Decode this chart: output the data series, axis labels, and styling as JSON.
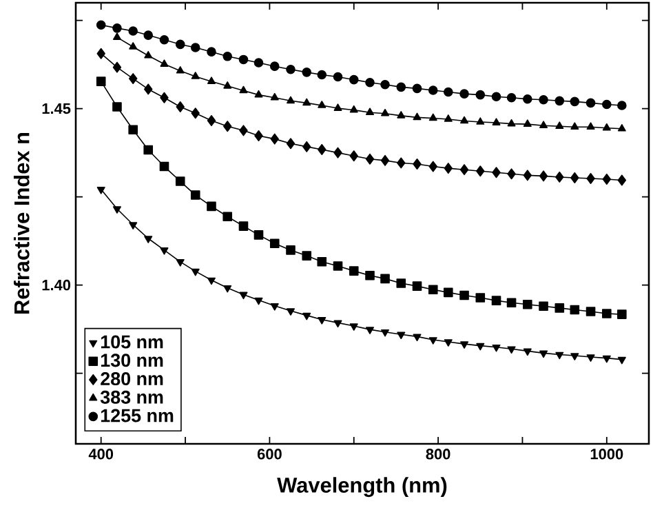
{
  "chart_data": {
    "type": "line",
    "xlabel": "Wavelength (nm)",
    "ylabel": "Refractive Index n",
    "x": [
      400,
      419,
      438,
      456,
      475,
      494,
      512,
      531,
      550,
      569,
      587,
      606,
      625,
      644,
      662,
      681,
      700,
      719,
      737,
      756,
      775,
      794,
      812,
      831,
      850,
      869,
      887,
      906,
      925,
      944,
      962,
      981,
      1000,
      1018
    ],
    "series": [
      {
        "name": "105 nm",
        "color": "#000000",
        "marker": "triangle-down",
        "values": [
          1.4271,
          1.4216,
          1.4171,
          1.4132,
          1.4099,
          1.4066,
          1.4039,
          1.4014,
          1.3992,
          1.3973,
          1.3957,
          1.3941,
          1.3927,
          1.3914,
          1.3902,
          1.3893,
          1.3884,
          1.3874,
          1.3867,
          1.386,
          1.3854,
          1.3845,
          1.3839,
          1.3833,
          1.3828,
          1.3824,
          1.3819,
          1.3813,
          1.3807,
          1.3803,
          1.38,
          1.3796,
          1.3793,
          1.3789
        ]
      },
      {
        "name": "130 nm",
        "color": "#000000",
        "marker": "square",
        "values": [
          1.4577,
          1.4505,
          1.444,
          1.4383,
          1.4336,
          1.4294,
          1.4255,
          1.4223,
          1.4194,
          1.4167,
          1.4142,
          1.4118,
          1.4099,
          1.4083,
          1.4066,
          1.4054,
          1.404,
          1.4027,
          1.4018,
          1.4005,
          1.3997,
          1.3987,
          1.3979,
          1.3971,
          1.3964,
          1.3956,
          1.395,
          1.3945,
          1.394,
          1.3935,
          1.393,
          1.3925,
          1.3919,
          1.3917
        ]
      },
      {
        "name": "280 nm",
        "color": "#000000",
        "marker": "diamond",
        "values": [
          1.4656,
          1.4617,
          1.4585,
          1.4555,
          1.4531,
          1.4505,
          1.4487,
          1.4466,
          1.445,
          1.4438,
          1.4423,
          1.4414,
          1.4401,
          1.4392,
          1.4384,
          1.4375,
          1.4366,
          1.4357,
          1.4353,
          1.4346,
          1.4343,
          1.4336,
          1.4331,
          1.4327,
          1.4323,
          1.4319,
          1.4315,
          1.4311,
          1.4309,
          1.4306,
          1.4304,
          1.4302,
          1.43,
          1.4297
        ]
      },
      {
        "name": "383 nm",
        "color": "#000000",
        "marker": "triangle",
        "values": [
          null,
          1.4702,
          1.4675,
          1.465,
          1.4626,
          1.4607,
          1.4591,
          1.4577,
          1.4564,
          1.4551,
          1.4539,
          1.4531,
          1.4522,
          1.4516,
          1.4509,
          1.4501,
          1.4496,
          1.4489,
          1.4486,
          1.448,
          1.4475,
          1.4473,
          1.447,
          1.4465,
          1.4462,
          1.446,
          1.4457,
          1.4456,
          1.4452,
          1.445,
          1.4448,
          1.4448,
          1.4445,
          1.4443
        ]
      },
      {
        "name": "1255 nm",
        "color": "#000000",
        "marker": "circle",
        "values": [
          1.4737,
          1.4728,
          1.472,
          1.4708,
          1.4695,
          1.4682,
          1.4673,
          1.4661,
          1.4648,
          1.4639,
          1.463,
          1.462,
          1.4611,
          1.4603,
          1.4596,
          1.459,
          1.4582,
          1.4574,
          1.4568,
          1.4561,
          1.4557,
          1.4552,
          1.4547,
          1.4542,
          1.4539,
          1.4534,
          1.4531,
          1.4527,
          1.4525,
          1.4522,
          1.452,
          1.4516,
          1.4512,
          1.4509
        ]
      }
    ],
    "xlim": [
      370,
      1050
    ],
    "ylim": [
      1.355,
      1.48
    ],
    "xticks": [
      400,
      {
        "value": 500,
        "label": null
      },
      600,
      {
        "value": 700,
        "label": null
      },
      800,
      {
        "value": 900,
        "label": null
      },
      1000
    ],
    "yticks": [
      {
        "value": 1.375,
        "label": null
      },
      {
        "value": 1.4,
        "label": "1.40"
      },
      {
        "value": 1.425,
        "label": null
      },
      1.45,
      {
        "value": 1.475,
        "label": null
      }
    ],
    "legend": "bottom left",
    "line_style": "solid"
  }
}
